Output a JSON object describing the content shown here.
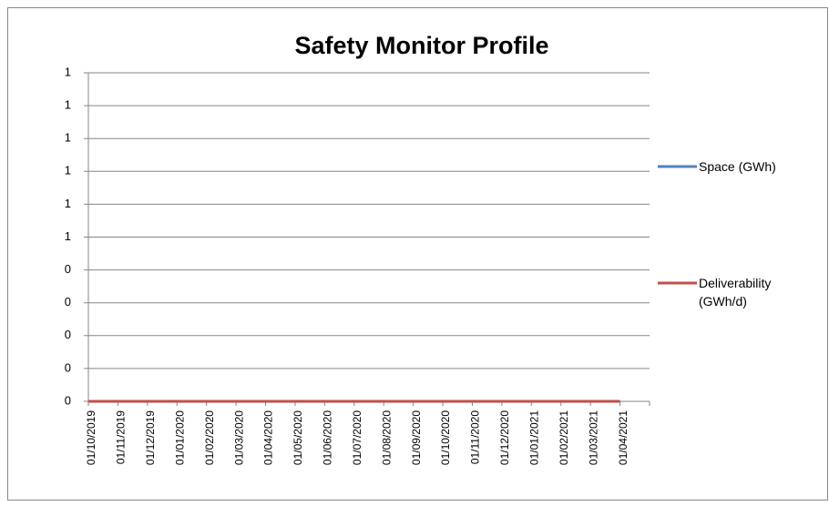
{
  "chart_data": {
    "type": "line",
    "title": "Safety Monitor Profile",
    "categories": [
      "01/10/2019",
      "01/11/2019",
      "01/12/2019",
      "01/01/2020",
      "01/02/2020",
      "01/03/2020",
      "01/04/2020",
      "01/05/2020",
      "01/06/2020",
      "01/07/2020",
      "01/08/2020",
      "01/09/2020",
      "01/10/2020",
      "01/11/2020",
      "01/12/2020",
      "01/01/2021",
      "01/02/2021",
      "01/03/2021",
      "01/04/2021"
    ],
    "series": [
      {
        "name": "Space (GWh)",
        "color": "#4f81bd",
        "values": [
          0,
          0,
          0,
          0,
          0,
          0,
          0,
          0,
          0,
          0,
          0,
          0,
          0,
          0,
          0,
          0,
          0,
          0,
          0
        ]
      },
      {
        "name": "Deliverability (GWh/d)",
        "color": "#c0504d",
        "values": [
          0,
          0,
          0,
          0,
          0,
          0,
          0,
          0,
          0,
          0,
          0,
          0,
          0,
          0,
          0,
          0,
          0,
          0,
          0
        ]
      }
    ],
    "ylim": [
      0,
      1
    ],
    "yticks": [
      0,
      {
        "value": 0.1,
        "label": "0"
      },
      {
        "value": 0.2,
        "label": "0"
      },
      {
        "value": 0.3,
        "label": "0"
      },
      {
        "value": 0.4,
        "label": "0"
      },
      {
        "value": 0.5,
        "label": "1"
      },
      {
        "value": 0.6,
        "label": "1"
      },
      {
        "value": 0.7,
        "label": "1"
      },
      {
        "value": 0.8,
        "label": "1"
      },
      {
        "value": 0.9,
        "label": "1"
      },
      1
    ],
    "grid": true,
    "legend": "right"
  }
}
